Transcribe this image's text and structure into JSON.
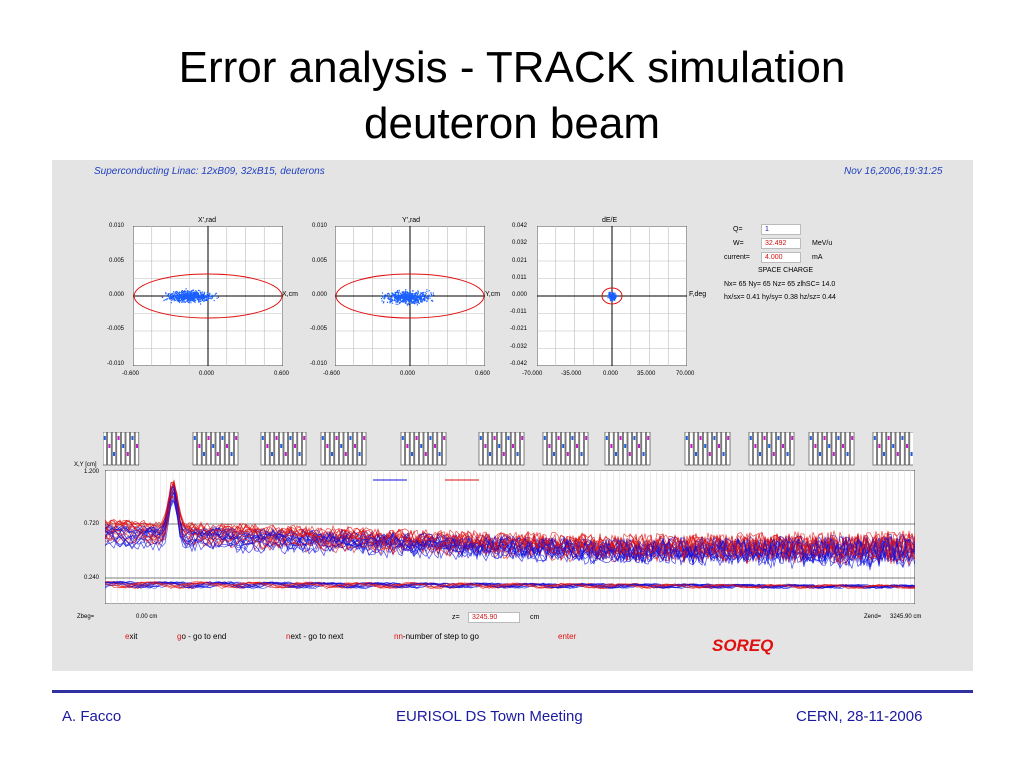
{
  "slide": {
    "title_line1": "Error analysis - TRACK simulation",
    "title_line2": "deuteron beam"
  },
  "sim": {
    "header_left": "Superconducting Linac: 12xB09, 32xB15, deuterons",
    "header_right": "Nov 16,2006,19:31:25",
    "plot1": {
      "title": "X',rad",
      "axis_label": "X,cm",
      "y_ticks": [
        "0.010",
        "0.005",
        "0.000",
        "-0.005",
        "-0.010"
      ],
      "x_ticks": [
        "-0.600",
        "0.000",
        "0.600"
      ]
    },
    "plot2": {
      "title": "Y',rad",
      "axis_label": "Y,cm",
      "y_ticks": [
        "0.010",
        "0.005",
        "0.000",
        "-0.005",
        "-0.010"
      ],
      "x_ticks": [
        "-0.600",
        "0.000",
        "0.600"
      ]
    },
    "plot3": {
      "title": "dE/E",
      "axis_label": "F,deg",
      "y_ticks": [
        "0.042",
        "0.032",
        "0.021",
        "0.011",
        "0.000",
        "-0.011",
        "-0.021",
        "-0.032",
        "-0.042"
      ],
      "x_ticks": [
        "-70.000",
        "-35.000",
        "0.000",
        "35.000",
        "70.000"
      ]
    },
    "params": {
      "q_label": "Q=",
      "q_value": "1",
      "w_label": "W=",
      "w_value": "32.492",
      "w_unit": "MeV/u",
      "current_label": "current=",
      "current_value": "4.000",
      "current_unit": "mA",
      "space_charge": "SPACE CHARGE",
      "grid_line": "Nx= 65    Ny= 65    Nz= 65    zlhSC= 14.0",
      "ratio_line": "hx/sx=  0.41   hy/sy=  0.38   hz/sz=  0.44"
    },
    "envelope": {
      "ylabel": "X,Y [cm]",
      "y_ticks": [
        "1.200",
        "0.720",
        "0.240"
      ],
      "legend_x": "X",
      "legend_y": "Y",
      "zbeg_label": "Zbeg=",
      "zbeg_value": "0.00 cm",
      "z_label": "z=",
      "z_value": "3245.90",
      "z_unit": "cm",
      "zend_label": "Zend=",
      "zend_value": "3245.90 cm"
    },
    "commands": {
      "exit_key": "e",
      "exit_rest": "xit",
      "go_key": "g",
      "go_rest": "o - go to end",
      "next_key": "n",
      "next_rest": "ext - go to next",
      "nn_key": "nn",
      "nn_rest": "-number of step to go",
      "enter": "enter"
    },
    "colors": {
      "x_traces": "#1010e0",
      "y_traces": "#e01010",
      "dots": "#1a5fff"
    }
  },
  "watermark": "SOREQ",
  "footer": {
    "left": "A. Facco",
    "center": "EURISOL DS Town Meeting",
    "right": "CERN, 28-11-2006"
  }
}
